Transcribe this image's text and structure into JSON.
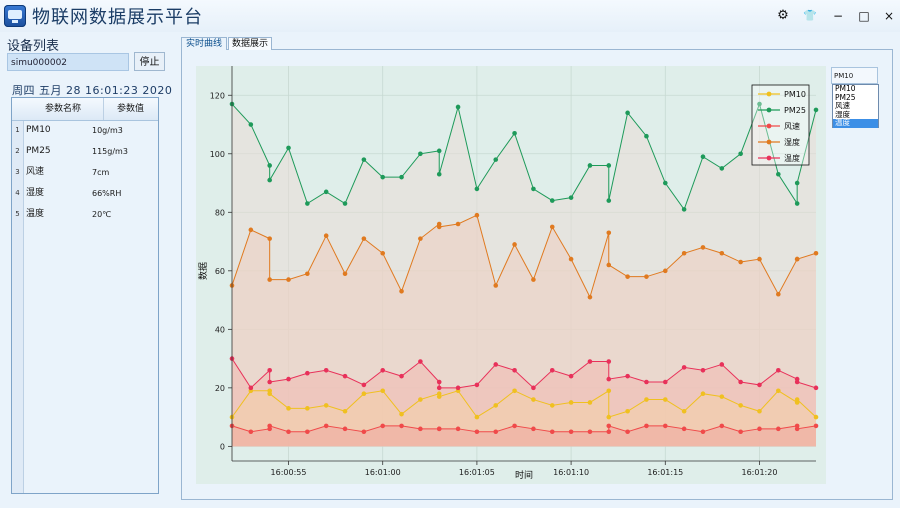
{
  "app": {
    "title": "物联网数据展示平台"
  },
  "window_controls": {
    "settings": "⚙",
    "skin": "👕",
    "minimize": "−",
    "maximize": "□",
    "close": "×"
  },
  "left": {
    "device_list_label": "设备列表",
    "device_value": "simu000002",
    "stop_label": "停止",
    "datetime": "周四 五月 28 16:01:23 2020",
    "table": {
      "headers": [
        "参数名称",
        "参数值"
      ],
      "rows": [
        {
          "num": "1",
          "name": "PM10",
          "value": "10g/m3"
        },
        {
          "num": "2",
          "name": "PM25",
          "value": "115g/m3"
        },
        {
          "num": "3",
          "name": "风速",
          "value": "7cm"
        },
        {
          "num": "4",
          "name": "湿度",
          "value": "66%RH"
        },
        {
          "num": "5",
          "name": "温度",
          "value": "20℃"
        }
      ]
    }
  },
  "tabs": [
    "实时曲线",
    "数据展示"
  ],
  "series_combo": {
    "selected": "PM10",
    "options": [
      "PM10",
      "PM25",
      "风速",
      "湿度",
      "温度"
    ],
    "highlighted": "温度"
  },
  "chart_data": {
    "type": "area",
    "xlabel": "时间",
    "ylabel": "数据",
    "ylim": [
      -5,
      130
    ],
    "yticks": [
      0,
      20,
      40,
      60,
      80,
      100,
      120
    ],
    "xlim": [
      0,
      31
    ],
    "xticks": [
      {
        "x": 3,
        "label": "16:00:55"
      },
      {
        "x": 8,
        "label": "16:01:00"
      },
      {
        "x": 13,
        "label": "16:01:05"
      },
      {
        "x": 18,
        "label": "16:01:10"
      },
      {
        "x": 23,
        "label": "16:01:15"
      },
      {
        "x": 28,
        "label": "16:01:20"
      }
    ],
    "x": [
      0,
      1,
      2,
      2,
      3,
      4,
      5,
      6,
      7,
      8,
      9,
      10,
      11,
      11,
      12,
      13,
      14,
      15,
      16,
      17,
      18,
      19,
      20,
      20,
      21,
      22,
      23,
      24,
      25,
      26,
      27,
      28,
      29,
      30,
      30,
      31
    ],
    "legend_position": "top-right",
    "grid": true,
    "series": [
      {
        "name": "PM10",
        "color": "#f0c020",
        "values": [
          10,
          19,
          19,
          18,
          13,
          13,
          14,
          12,
          18,
          19,
          11,
          16,
          18,
          17,
          19,
          10,
          14,
          19,
          16,
          14,
          15,
          15,
          19,
          10,
          12,
          16,
          16,
          12,
          18,
          17,
          14,
          12,
          19,
          15,
          16,
          10
        ]
      },
      {
        "name": "PM25",
        "color": "#1e9a5a",
        "values": [
          117,
          110,
          96,
          91,
          102,
          83,
          87,
          83,
          98,
          92,
          92,
          100,
          101,
          93,
          116,
          88,
          98,
          107,
          88,
          84,
          85,
          96,
          96,
          84,
          114,
          106,
          90,
          81,
          99,
          95,
          100,
          117,
          93,
          83,
          90,
          115
        ]
      },
      {
        "name": "风速",
        "color": "#f04a4a",
        "values": [
          7,
          5,
          6,
          7,
          5,
          5,
          7,
          6,
          5,
          7,
          7,
          6,
          6,
          6,
          6,
          5,
          5,
          7,
          6,
          5,
          5,
          5,
          5,
          7,
          5,
          7,
          7,
          6,
          5,
          7,
          5,
          6,
          6,
          7,
          6,
          7
        ]
      },
      {
        "name": "湿度",
        "color": "#e07a20",
        "values": [
          55,
          74,
          71,
          57,
          57,
          59,
          72,
          59,
          71,
          66,
          53,
          71,
          76,
          75,
          76,
          79,
          55,
          69,
          57,
          75,
          64,
          51,
          73,
          62,
          58,
          58,
          60,
          66,
          68,
          66,
          63,
          64,
          52,
          64,
          64,
          66
        ]
      },
      {
        "name": "温度",
        "color": "#e8315a",
        "values": [
          30,
          20,
          26,
          22,
          23,
          25,
          26,
          24,
          21,
          26,
          24,
          29,
          22,
          20,
          20,
          21,
          28,
          26,
          20,
          26,
          24,
          29,
          29,
          23,
          24,
          22,
          22,
          27,
          26,
          28,
          22,
          21,
          26,
          23,
          22,
          20
        ]
      }
    ]
  }
}
